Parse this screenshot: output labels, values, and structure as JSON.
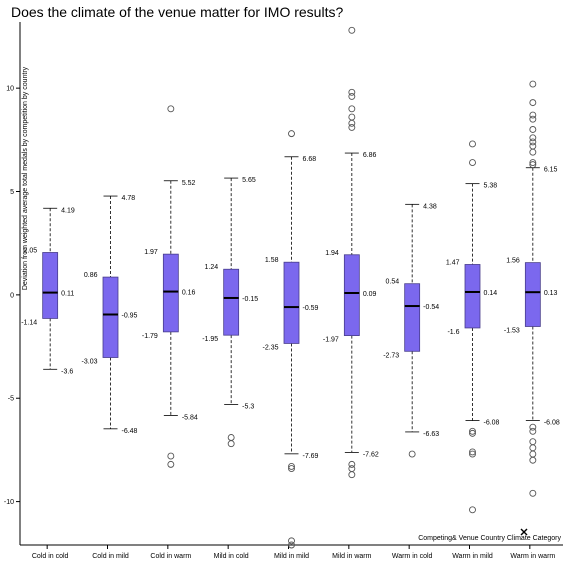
{
  "chart_data": {
    "type": "boxplot",
    "title": "Does the climate of the venue matter for IMO results?",
    "ylabel": "Deviation from weighted average total medals by competition by country",
    "xlabel": "Competing& Venue Country Climate Category",
    "ylim": [
      -12.1,
      13.2
    ],
    "yticks": [
      -10,
      -5,
      0,
      5,
      10
    ],
    "colors": {
      "box_fill": "#7b68ee",
      "box_stroke": "#483d8b",
      "median": "#000000",
      "whisker": "#000000",
      "outlier": "#555555"
    },
    "categories": [
      "Cold in cold",
      "Cold in mild",
      "Cold in warm",
      "Mild in cold",
      "Mild in mild",
      "Mild in warm",
      "Warm in cold",
      "Warm in mild",
      "Warm in warm"
    ],
    "boxes": [
      {
        "category": "Cold in cold",
        "whisker_high": 4.19,
        "q3": 2.05,
        "median": 0.11,
        "q1": -1.14,
        "whisker_low": -3.6,
        "labels": {
          "whisker_high": "4.19",
          "q3": "2.05",
          "median": "0.11",
          "q1": "-1.14",
          "whisker_low": "-3.6"
        },
        "outliers": []
      },
      {
        "category": "Cold in mild",
        "whisker_high": 4.78,
        "q3": 0.86,
        "median": -0.95,
        "q1": -3.03,
        "whisker_low": -6.48,
        "labels": {
          "whisker_high": "4.78",
          "q3": "0.86",
          "median": "-0.95",
          "q1": "-3.03",
          "whisker_low": "-6.48"
        },
        "outliers": []
      },
      {
        "category": "Cold in warm",
        "whisker_high": 5.52,
        "q3": 1.97,
        "median": 0.16,
        "q1": -1.79,
        "whisker_low": -5.84,
        "labels": {
          "whisker_high": "5.52",
          "q3": "1.97",
          "median": "0.16",
          "q1": "-1.79",
          "whisker_low": "-5.84"
        },
        "outliers": [
          9.0,
          -7.8,
          -8.2
        ]
      },
      {
        "category": "Mild in cold",
        "whisker_high": 5.65,
        "q3": 1.24,
        "median": -0.15,
        "q1": -1.95,
        "whisker_low": -5.3,
        "labels": {
          "whisker_high": "5.65",
          "q3": "1.24",
          "median": "-0.15",
          "q1": "-1.95",
          "whisker_low": "-5.3"
        },
        "outliers": [
          -6.9,
          -7.2
        ]
      },
      {
        "category": "Mild in mild",
        "whisker_high": 6.68,
        "q3": 1.58,
        "median": -0.59,
        "q1": -2.35,
        "whisker_low": -7.69,
        "labels": {
          "whisker_high": "6.68",
          "q3": "1.58",
          "median": "-0.59",
          "q1": "-2.35",
          "whisker_low": "-7.69"
        },
        "outliers": [
          7.8,
          -8.3,
          -8.4,
          -11.9,
          -12.1
        ]
      },
      {
        "category": "Mild in warm",
        "whisker_high": 6.86,
        "q3": 1.94,
        "median": 0.09,
        "q1": -1.97,
        "whisker_low": -7.62,
        "labels": {
          "whisker_high": "6.86",
          "q3": "1.94",
          "median": "0.09",
          "q1": "-1.97",
          "whisker_low": "-7.62"
        },
        "outliers": [
          12.8,
          9.8,
          9.6,
          9.0,
          8.6,
          8.3,
          8.1,
          -8.2,
          -8.4,
          -8.7
        ]
      },
      {
        "category": "Warm in cold",
        "whisker_high": 4.38,
        "q3": 0.54,
        "median": -0.54,
        "q1": -2.73,
        "whisker_low": -6.63,
        "labels": {
          "whisker_high": "4.38",
          "q3": "0.54",
          "median": "-0.54",
          "q1": "-2.73",
          "whisker_low": "-6.63"
        },
        "outliers": [
          -7.7
        ]
      },
      {
        "category": "Warm in mild",
        "whisker_high": 5.38,
        "q3": 1.47,
        "median": 0.14,
        "q1": -1.6,
        "whisker_low": -6.08,
        "labels": {
          "whisker_high": "5.38",
          "q3": "1.47",
          "median": "0.14",
          "q1": "-1.6",
          "whisker_low": "-6.08"
        },
        "outliers": [
          7.3,
          6.4,
          -6.6,
          -6.7,
          -7.6,
          -7.7,
          -10.4
        ]
      },
      {
        "category": "Warm in warm",
        "whisker_high": 6.15,
        "q3": 1.56,
        "median": 0.13,
        "q1": -1.53,
        "whisker_low": -6.08,
        "labels": {
          "whisker_high": "6.15",
          "q3": "1.56",
          "median": "0.13",
          "q1": "-1.53",
          "whisker_low": "-6.08"
        },
        "outliers": [
          10.2,
          9.3,
          8.7,
          8.5,
          8.0,
          7.6,
          7.4,
          7.2,
          6.9,
          6.4,
          6.3,
          -6.4,
          -6.6,
          -7.1,
          -7.4,
          -7.7,
          -8.0,
          -9.6
        ]
      }
    ]
  }
}
